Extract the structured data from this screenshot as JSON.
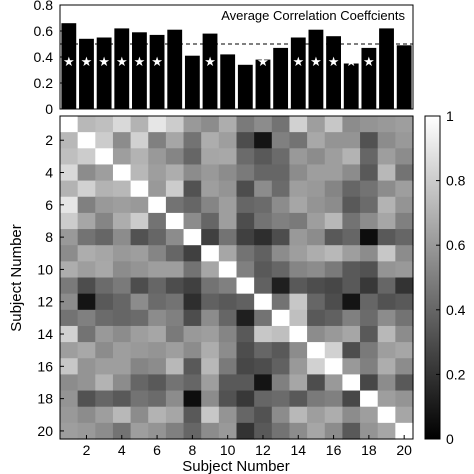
{
  "chart_data": [
    {
      "type": "bar",
      "title": "Average Correlation Coeffcients",
      "x": [
        1,
        2,
        3,
        4,
        5,
        6,
        7,
        8,
        9,
        10,
        11,
        12,
        13,
        14,
        15,
        16,
        17,
        18,
        19,
        20
      ],
      "values": [
        0.66,
        0.54,
        0.55,
        0.62,
        0.59,
        0.57,
        0.61,
        0.41,
        0.58,
        0.42,
        0.34,
        0.38,
        0.47,
        0.55,
        0.61,
        0.56,
        0.35,
        0.47,
        0.62,
        0.49
      ],
      "significant": [
        true,
        true,
        true,
        true,
        true,
        true,
        false,
        false,
        true,
        false,
        false,
        true,
        false,
        true,
        true,
        true,
        true,
        true,
        false,
        false
      ],
      "star_symbol": "★",
      "reference_line": 0.5,
      "ylim": [
        0,
        0.8
      ],
      "yticks": [
        "0",
        "0.2",
        "0.4",
        "0.6",
        "0.8"
      ],
      "bar_color": "#000000"
    },
    {
      "type": "heatmap",
      "xlabel": "Subject Number",
      "ylabel": "Subject Number",
      "xticks": [
        "2",
        "4",
        "6",
        "8",
        "10",
        "12",
        "14",
        "16",
        "18",
        "20"
      ],
      "yticks": [
        "2",
        "4",
        "6",
        "8",
        "10",
        "12",
        "14",
        "16",
        "18",
        "20"
      ],
      "colormap": "gray",
      "colorbar": {
        "range": [
          0,
          1
        ],
        "ticks": [
          "0",
          "0.2",
          "0.4",
          "0.6",
          "0.8",
          "1"
        ]
      },
      "matrix": [
        [
          1.0,
          0.72,
          0.75,
          0.85,
          0.7,
          0.9,
          0.8,
          0.6,
          0.55,
          0.68,
          0.48,
          0.55,
          0.45,
          0.82,
          0.62,
          0.78,
          0.55,
          0.58,
          0.6,
          0.62
        ],
        [
          0.72,
          1.0,
          0.8,
          0.55,
          0.82,
          0.5,
          0.65,
          0.45,
          0.68,
          0.62,
          0.3,
          0.08,
          0.5,
          0.45,
          0.66,
          0.58,
          0.58,
          0.32,
          0.55,
          0.6
        ],
        [
          0.75,
          0.8,
          1.0,
          0.62,
          0.7,
          0.6,
          0.52,
          0.4,
          0.65,
          0.66,
          0.42,
          0.35,
          0.42,
          0.6,
          0.55,
          0.62,
          0.7,
          0.4,
          0.62,
          0.55
        ],
        [
          0.85,
          0.55,
          0.62,
          1.0,
          0.72,
          0.62,
          0.68,
          0.55,
          0.6,
          0.55,
          0.48,
          0.4,
          0.4,
          0.55,
          0.62,
          0.62,
          0.55,
          0.35,
          0.72,
          0.45
        ],
        [
          0.7,
          0.82,
          0.7,
          0.72,
          1.0,
          0.6,
          0.8,
          0.32,
          0.62,
          0.58,
          0.3,
          0.55,
          0.42,
          0.62,
          0.6,
          0.52,
          0.4,
          0.45,
          0.55,
          0.62
        ],
        [
          0.9,
          0.5,
          0.6,
          0.62,
          0.6,
          1.0,
          0.45,
          0.4,
          0.52,
          0.62,
          0.4,
          0.42,
          0.55,
          0.65,
          0.58,
          0.55,
          0.35,
          0.42,
          0.7,
          0.58
        ],
        [
          0.8,
          0.65,
          0.52,
          0.68,
          0.8,
          0.45,
          1.0,
          0.55,
          0.4,
          0.62,
          0.3,
          0.45,
          0.5,
          0.48,
          0.62,
          0.72,
          0.45,
          0.55,
          0.65,
          0.5
        ],
        [
          0.6,
          0.45,
          0.4,
          0.55,
          0.32,
          0.4,
          0.55,
          1.0,
          0.25,
          0.45,
          0.25,
          0.18,
          0.3,
          0.6,
          0.55,
          0.35,
          0.4,
          0.05,
          0.35,
          0.4
        ],
        [
          0.55,
          0.68,
          0.65,
          0.6,
          0.62,
          0.52,
          0.4,
          0.25,
          1.0,
          0.65,
          0.45,
          0.38,
          0.55,
          0.62,
          0.68,
          0.72,
          0.62,
          0.55,
          0.78,
          0.55
        ],
        [
          0.68,
          0.62,
          0.66,
          0.55,
          0.58,
          0.62,
          0.62,
          0.45,
          0.65,
          1.0,
          0.5,
          0.35,
          0.4,
          0.52,
          0.55,
          0.48,
          0.35,
          0.32,
          0.58,
          0.6
        ],
        [
          0.48,
          0.3,
          0.42,
          0.48,
          0.3,
          0.4,
          0.3,
          0.25,
          0.45,
          0.5,
          1.0,
          0.38,
          0.12,
          0.35,
          0.3,
          0.28,
          0.35,
          0.22,
          0.4,
          0.2
        ],
        [
          0.55,
          0.08,
          0.35,
          0.4,
          0.55,
          0.42,
          0.45,
          0.18,
          0.38,
          0.35,
          0.38,
          1.0,
          0.45,
          0.78,
          0.4,
          0.3,
          0.08,
          0.4,
          0.32,
          0.35
        ],
        [
          0.45,
          0.5,
          0.42,
          0.4,
          0.42,
          0.55,
          0.5,
          0.3,
          0.55,
          0.4,
          0.12,
          0.45,
          1.0,
          0.75,
          0.35,
          0.38,
          0.5,
          0.42,
          0.55,
          0.45
        ],
        [
          0.82,
          0.45,
          0.6,
          0.55,
          0.62,
          0.65,
          0.48,
          0.6,
          0.62,
          0.52,
          0.35,
          0.78,
          0.75,
          1.0,
          0.55,
          0.6,
          0.65,
          0.35,
          0.72,
          0.55
        ],
        [
          0.62,
          0.66,
          0.55,
          0.62,
          0.6,
          0.58,
          0.62,
          0.55,
          0.68,
          0.55,
          0.3,
          0.4,
          0.35,
          0.55,
          1.0,
          0.82,
          0.3,
          0.48,
          0.62,
          0.65
        ],
        [
          0.78,
          0.58,
          0.62,
          0.62,
          0.52,
          0.55,
          0.72,
          0.35,
          0.72,
          0.48,
          0.28,
          0.3,
          0.38,
          0.6,
          0.82,
          1.0,
          0.6,
          0.5,
          0.68,
          0.55
        ],
        [
          0.55,
          0.58,
          0.7,
          0.55,
          0.4,
          0.35,
          0.45,
          0.4,
          0.62,
          0.35,
          0.35,
          0.08,
          0.5,
          0.65,
          0.3,
          0.6,
          1.0,
          0.28,
          0.55,
          0.35
        ],
        [
          0.58,
          0.32,
          0.4,
          0.35,
          0.45,
          0.42,
          0.55,
          0.05,
          0.55,
          0.32,
          0.22,
          0.4,
          0.42,
          0.35,
          0.48,
          0.5,
          0.28,
          1.0,
          0.62,
          0.58
        ],
        [
          0.6,
          0.55,
          0.62,
          0.72,
          0.55,
          0.7,
          0.65,
          0.35,
          0.78,
          0.58,
          0.4,
          0.32,
          0.55,
          0.72,
          0.62,
          0.68,
          0.55,
          0.62,
          1.0,
          0.65
        ],
        [
          0.62,
          0.6,
          0.55,
          0.45,
          0.62,
          0.58,
          0.5,
          0.4,
          0.55,
          0.6,
          0.2,
          0.35,
          0.45,
          0.55,
          0.65,
          0.55,
          0.35,
          0.58,
          0.65,
          1.0
        ]
      ]
    }
  ]
}
